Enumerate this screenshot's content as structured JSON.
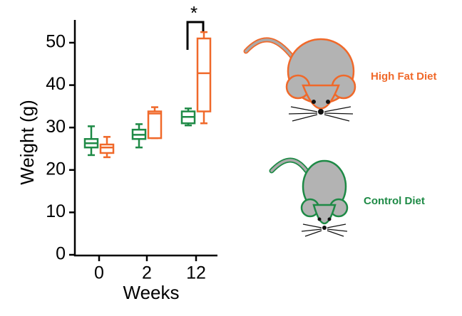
{
  "chart_data": {
    "type": "box",
    "categories": [
      "0",
      "2",
      "12"
    ],
    "x_label": "Weeks",
    "y_label": "Weight (g)",
    "ylim": [
      0,
      55
    ],
    "yticks": [
      0,
      10,
      20,
      30,
      40,
      50
    ],
    "annotation": "*",
    "series": [
      {
        "name": "Control Diet",
        "color": "#1e8a46",
        "min": [
          23.5,
          25.3,
          30.5
        ],
        "q1": [
          25.3,
          27.3,
          31
        ],
        "median": [
          26.3,
          28.3,
          32.5
        ],
        "q3": [
          27.3,
          29.5,
          33.8
        ],
        "max": [
          30.3,
          30.8,
          34.5
        ]
      },
      {
        "name": "High Fat Diet",
        "color": "#f0692a",
        "min": [
          23,
          27.5,
          31
        ],
        "q1": [
          24,
          27.5,
          33.8
        ],
        "median": [
          25.3,
          33.3,
          42.8
        ],
        "q3": [
          26,
          33.8,
          51
        ],
        "max": [
          27.8,
          34.8,
          52.5
        ]
      }
    ]
  }
}
